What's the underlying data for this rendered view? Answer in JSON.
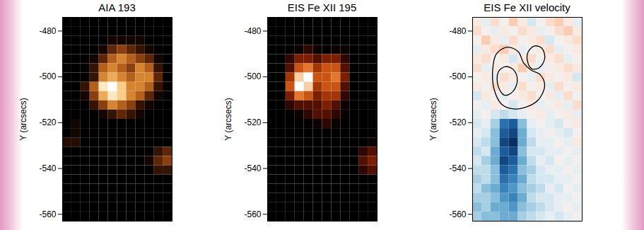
{
  "chart_data": [
    {
      "type": "heatmap",
      "title": "AIA 193",
      "ylabel": "Y (arcsecs)",
      "ylim": [
        -563,
        -474
      ],
      "yticks": [
        -480,
        -500,
        -520,
        -540,
        -560
      ],
      "tick_labels": "y",
      "color": "sdoaia193",
      "cells": [
        [
          0.4,
          0.4,
          0.4,
          0.4,
          0.4,
          0.4,
          0.4,
          0.4,
          0.4,
          0.4,
          0.4,
          0.4
        ],
        [
          0.4,
          0.4,
          0.4,
          0.4,
          0.4,
          0.4,
          0.4,
          0.4,
          0.4,
          0.4,
          0.4,
          0.4
        ],
        [
          0.4,
          0.4,
          0.4,
          0.4,
          0.4,
          1,
          1,
          1,
          1,
          0.4,
          0.4,
          0.4
        ],
        [
          0.4,
          0.4,
          0.4,
          0.4,
          1,
          3,
          4,
          3,
          2,
          1,
          0.4,
          0.4
        ],
        [
          0.4,
          0.4,
          0.4,
          1,
          3,
          5,
          6,
          5,
          4,
          3,
          1,
          0.4
        ],
        [
          0.4,
          0.4,
          0.4,
          2,
          5,
          6,
          5,
          4,
          6,
          5,
          2,
          0.4
        ],
        [
          0.4,
          0.4,
          0.4,
          2,
          6,
          7,
          6,
          5,
          6,
          6,
          3,
          0.4
        ],
        [
          0.4,
          0.4,
          2,
          5,
          9,
          10,
          8,
          6,
          6,
          5,
          2,
          0.4
        ],
        [
          0.4,
          0.4,
          1,
          4,
          7,
          9,
          8,
          6,
          5,
          3,
          1,
          0.4
        ],
        [
          0.4,
          0.4,
          0.4,
          2,
          4,
          6,
          5,
          4,
          2,
          1,
          0.4,
          0.4
        ],
        [
          0.4,
          0.4,
          0.4,
          0.4,
          1,
          2,
          3,
          2,
          1,
          0.4,
          0.4,
          0.4
        ],
        [
          0.4,
          1,
          0.4,
          0.4,
          0.4,
          0.4,
          0.4,
          0.4,
          0.4,
          0.4,
          0.4,
          0.4
        ],
        [
          0.4,
          1,
          0.4,
          0.4,
          0.4,
          0.4,
          0.4,
          0.4,
          0.4,
          0.4,
          0.4,
          0.4
        ],
        [
          1.5,
          1.5,
          0.4,
          0.4,
          0.4,
          0.4,
          0.4,
          0.4,
          0.4,
          0.4,
          0.4,
          0.4
        ],
        [
          0.4,
          0.4,
          0.4,
          0.4,
          0.4,
          0.4,
          0.4,
          0.4,
          0.4,
          0.4,
          2,
          3
        ],
        [
          0.4,
          0.4,
          0.4,
          0.4,
          0.4,
          0.4,
          0.4,
          0.4,
          0.4,
          1,
          3,
          4
        ],
        [
          0.4,
          0.4,
          0.4,
          0.4,
          0.4,
          0.4,
          0.4,
          0.4,
          0.4,
          0.4,
          2,
          2
        ],
        [
          0.4,
          0.4,
          0.4,
          0.4,
          0.4,
          0.4,
          0.4,
          0.4,
          0.4,
          0.4,
          0.4,
          0.4
        ],
        [
          0.4,
          0.4,
          0.4,
          0.4,
          0.4,
          0.4,
          0.4,
          0.4,
          0.4,
          0.4,
          0.4,
          0.4
        ],
        [
          0.4,
          0.4,
          0.4,
          0.4,
          0.4,
          0.4,
          0.4,
          0.4,
          0.4,
          0.4,
          0.4,
          0.4
        ],
        [
          0.4,
          0.4,
          0.4,
          0.4,
          0.4,
          0.4,
          0.4,
          0.4,
          0.4,
          0.4,
          0.4,
          0.4
        ],
        [
          0.4,
          0.4,
          0.4,
          0.4,
          0.4,
          0.4,
          0.4,
          0.4,
          0.4,
          0.4,
          0.4,
          0.4
        ]
      ]
    },
    {
      "type": "heatmap",
      "title": "EIS Fe XII 195",
      "ylabel": "Y (arcsecs)",
      "ylim": [
        -563,
        -474
      ],
      "yticks": [
        -480,
        -500,
        -520,
        -540,
        -560
      ],
      "tick_labels": "y",
      "color": "hot",
      "cells": [
        [
          0.6,
          0.6,
          0.6,
          0.6,
          0.6,
          0.6,
          0.6,
          0.6,
          0.6,
          0.6,
          0.6,
          0.6
        ],
        [
          0.6,
          0.6,
          0.6,
          0.6,
          0.6,
          0.6,
          0.6,
          0.6,
          0.6,
          0.6,
          0.6,
          0.6
        ],
        [
          0.6,
          0.6,
          0.6,
          0.6,
          0.6,
          0.6,
          0.6,
          0.6,
          0.6,
          0.6,
          0.6,
          0.6
        ],
        [
          0.6,
          0.6,
          0.6,
          1,
          2,
          1,
          0.6,
          1,
          1,
          0.6,
          0.6,
          0.6
        ],
        [
          0.6,
          0.6,
          2,
          4,
          4,
          3,
          4,
          4,
          2,
          0.6,
          0.6,
          0.6
        ],
        [
          0.6,
          0.6,
          3,
          6,
          7,
          5,
          6,
          6,
          3,
          0.6,
          0.6,
          0.6
        ],
        [
          0.6,
          0.6,
          5,
          9,
          10,
          6,
          6,
          7,
          4,
          0.6,
          0.6,
          0.6
        ],
        [
          0.6,
          0.6,
          6,
          10,
          9,
          5,
          6,
          6,
          3,
          0.6,
          0.6,
          0.6
        ],
        [
          0.6,
          0.6,
          4,
          7,
          6,
          4,
          5,
          5,
          2,
          0.6,
          0.6,
          0.6
        ],
        [
          0.6,
          0.6,
          2,
          3,
          3,
          3,
          4,
          3,
          1,
          0.6,
          0.6,
          0.6
        ],
        [
          0.6,
          0.6,
          0.6,
          1,
          2,
          3,
          3,
          2,
          1,
          0.6,
          0.6,
          0.6
        ],
        [
          0.6,
          0.6,
          0.6,
          0.6,
          0.6,
          1,
          2,
          1,
          0.6,
          0.6,
          0.6,
          0.6
        ],
        [
          0.6,
          0.6,
          0.6,
          0.6,
          0.6,
          0.6,
          0.6,
          0.6,
          0.6,
          0.6,
          0.6,
          0.6
        ],
        [
          0.6,
          0.6,
          0.6,
          0.6,
          0.6,
          0.6,
          0.6,
          0.6,
          0.6,
          0.6,
          0.6,
          1
        ],
        [
          0.6,
          0.6,
          0.6,
          0.6,
          0.6,
          0.6,
          0.6,
          0.6,
          0.6,
          0.6,
          2,
          3
        ],
        [
          0.6,
          0.6,
          0.6,
          0.6,
          0.6,
          0.6,
          0.6,
          0.6,
          0.6,
          0.6,
          3,
          4
        ],
        [
          0.6,
          0.6,
          0.6,
          0.6,
          0.6,
          0.6,
          0.6,
          0.6,
          0.6,
          0.6,
          2,
          3
        ],
        [
          0.6,
          0.6,
          0.6,
          0.6,
          0.6,
          0.6,
          0.6,
          0.6,
          0.6,
          0.6,
          0.6,
          0.6
        ],
        [
          0.6,
          0.6,
          0.6,
          0.6,
          0.6,
          0.6,
          0.6,
          0.6,
          0.6,
          0.6,
          0.6,
          0.6
        ],
        [
          0.6,
          0.6,
          0.6,
          0.6,
          0.6,
          0.6,
          0.6,
          0.6,
          0.6,
          0.6,
          0.6,
          0.6
        ],
        [
          0.6,
          0.6,
          0.6,
          0.6,
          0.6,
          0.6,
          0.6,
          0.6,
          0.6,
          0.6,
          0.6,
          0.6
        ],
        [
          0.6,
          0.6,
          0.6,
          0.6,
          0.6,
          0.6,
          0.6,
          0.6,
          0.6,
          0.6,
          0.6,
          0.6
        ]
      ]
    },
    {
      "type": "heatmap",
      "title": "EIS Fe XII velocity",
      "ylabel": "Y (arcsecs)",
      "ylim": [
        -563,
        -474
      ],
      "yticks": [
        -480,
        -500,
        -520,
        -540,
        -560
      ],
      "tick_labels": "y",
      "color": "RdBu",
      "cells": [
        [
          1,
          -1,
          2,
          0,
          3,
          1,
          -2,
          0,
          2,
          3,
          1,
          -1
        ],
        [
          2,
          0,
          -1,
          1,
          0,
          2,
          1,
          -1,
          0,
          2,
          3,
          1
        ],
        [
          0,
          3,
          1,
          -1,
          2,
          0,
          1,
          2,
          -2,
          0,
          1,
          2
        ],
        [
          -1,
          1,
          2,
          3,
          1,
          -1,
          0,
          1,
          2,
          -1,
          0,
          1
        ],
        [
          1,
          2,
          0,
          1,
          -2,
          1,
          2,
          0,
          1,
          2,
          -1,
          0
        ],
        [
          2,
          -1,
          1,
          0,
          1,
          3,
          1,
          -1,
          0,
          1,
          2,
          1
        ],
        [
          0,
          1,
          -1,
          2,
          1,
          0,
          -1,
          2,
          1,
          0,
          1,
          -2
        ],
        [
          1,
          0,
          2,
          1,
          -1,
          2,
          0,
          1,
          -1,
          2,
          0,
          1
        ],
        [
          -2,
          1,
          0,
          -1,
          0,
          1,
          2,
          0,
          1,
          -1,
          2,
          0
        ],
        [
          0,
          -1,
          1,
          0,
          -2,
          0,
          1,
          -1,
          0,
          1,
          -1,
          2
        ],
        [
          -1,
          0,
          -2,
          -3,
          -2,
          -1,
          0,
          1,
          -1,
          0,
          1,
          -1
        ],
        [
          -2,
          -1,
          -4,
          -9,
          -10,
          -5,
          -1,
          0,
          -1,
          -2,
          0,
          1
        ],
        [
          -1,
          -2,
          -5,
          -10,
          -11,
          -6,
          -2,
          -1,
          0,
          -1,
          -2,
          0
        ],
        [
          -2,
          -3,
          -5,
          -11,
          -12,
          -6,
          -3,
          -1,
          -1,
          0,
          -1,
          1
        ],
        [
          -3,
          -2,
          -6,
          -10,
          -11,
          -5,
          -2,
          -2,
          -1,
          -1,
          0,
          -1
        ],
        [
          -2,
          -4,
          -6,
          -11,
          -10,
          -6,
          -3,
          -1,
          -2,
          0,
          -1,
          0
        ],
        [
          -3,
          -3,
          -5,
          -10,
          -9,
          -5,
          -4,
          -2,
          -1,
          -1,
          0,
          -1
        ],
        [
          -4,
          -3,
          -5,
          -9,
          -8,
          -6,
          -3,
          -2,
          -2,
          -1,
          -1,
          0
        ],
        [
          -3,
          -5,
          -6,
          -8,
          -7,
          -5,
          -4,
          -3,
          -1,
          -2,
          0,
          -1
        ],
        [
          -4,
          -4,
          -5,
          -7,
          -8,
          -6,
          -3,
          -2,
          -2,
          -1,
          -1,
          0
        ],
        [
          -5,
          -4,
          -6,
          -6,
          -7,
          -5,
          -4,
          -3,
          -2,
          -1,
          0,
          -1
        ],
        [
          -4,
          -5,
          -5,
          -6,
          -6,
          -4,
          -3,
          -2,
          -1,
          -2,
          -1,
          0
        ]
      ],
      "contours": [
        {
          "x": [
            2.2,
            2.6,
            3.8,
            5,
            5.6,
            6.4,
            7.4,
            7.9,
            7.2,
            6,
            4.5,
            3.2,
            2.4
          ],
          "y": [
            -497,
            -490,
            -487,
            -489,
            -494,
            -497,
            -499,
            -504,
            -510,
            -513,
            -514,
            -512,
            -506
          ]
        },
        {
          "x": [
            2.8,
            3.6,
            4.5,
            4.9,
            4.4,
            3.5,
            2.8
          ],
          "y": [
            -498,
            -495.5,
            -497,
            -501.5,
            -506.5,
            -508,
            -504
          ]
        },
        {
          "x": [
            6.1,
            6.8,
            7.6,
            7.9,
            7.3,
            6.5,
            6.0
          ],
          "y": [
            -489,
            -486.5,
            -487.5,
            -492,
            -496,
            -496.5,
            -493
          ]
        }
      ]
    }
  ]
}
